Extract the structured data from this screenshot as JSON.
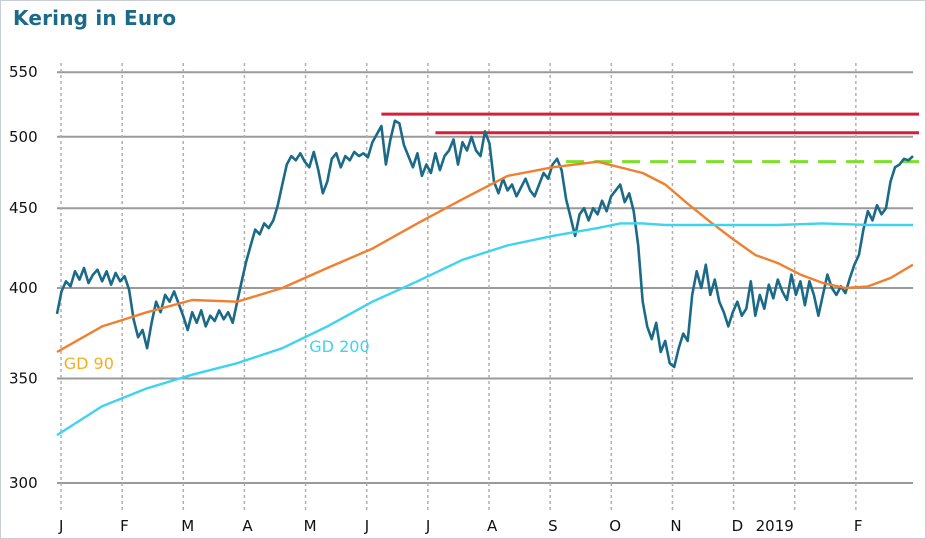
{
  "chart_data": {
    "type": "line",
    "title": "Kering in Euro",
    "xlabel": "",
    "ylabel": "",
    "y_scale": "log",
    "ylim": [
      290,
      570
    ],
    "yticks": [
      300,
      350,
      400,
      450,
      500,
      550
    ],
    "x_tick_labels": [
      "J",
      "F",
      "M",
      "A",
      "M",
      "J",
      "J",
      "A",
      "S",
      "O",
      "N",
      "D",
      "2019",
      "F"
    ],
    "grid": true,
    "series": [
      {
        "name": "",
        "role": "price",
        "color": "#1b6a88",
        "points": [
          [
            0,
            385
          ],
          [
            2,
            398
          ],
          [
            4,
            404
          ],
          [
            6,
            401
          ],
          [
            8,
            410
          ],
          [
            10,
            405
          ],
          [
            12,
            412
          ],
          [
            14,
            403
          ],
          [
            16,
            408
          ],
          [
            18,
            411
          ],
          [
            20,
            404
          ],
          [
            22,
            410
          ],
          [
            24,
            402
          ],
          [
            26,
            409
          ],
          [
            28,
            404
          ],
          [
            30,
            407
          ],
          [
            32,
            399
          ],
          [
            34,
            382
          ],
          [
            36,
            372
          ],
          [
            38,
            376
          ],
          [
            40,
            366
          ],
          [
            42,
            380
          ],
          [
            44,
            392
          ],
          [
            46,
            386
          ],
          [
            48,
            396
          ],
          [
            50,
            392
          ],
          [
            52,
            398
          ],
          [
            54,
            391
          ],
          [
            56,
            384
          ],
          [
            58,
            376
          ],
          [
            60,
            386
          ],
          [
            62,
            380
          ],
          [
            64,
            387
          ],
          [
            66,
            378
          ],
          [
            68,
            384
          ],
          [
            70,
            381
          ],
          [
            72,
            387
          ],
          [
            74,
            382
          ],
          [
            76,
            386
          ],
          [
            78,
            380
          ],
          [
            80,
            392
          ],
          [
            82,
            404
          ],
          [
            84,
            416
          ],
          [
            86,
            426
          ],
          [
            88,
            436
          ],
          [
            90,
            433
          ],
          [
            92,
            440
          ],
          [
            94,
            437
          ],
          [
            96,
            442
          ],
          [
            98,
            452
          ],
          [
            100,
            466
          ],
          [
            102,
            480
          ],
          [
            104,
            486
          ],
          [
            106,
            483
          ],
          [
            108,
            488
          ],
          [
            110,
            482
          ],
          [
            112,
            478
          ],
          [
            114,
            489
          ],
          [
            116,
            476
          ],
          [
            118,
            460
          ],
          [
            120,
            468
          ],
          [
            122,
            484
          ],
          [
            124,
            488
          ],
          [
            126,
            478
          ],
          [
            128,
            486
          ],
          [
            130,
            483
          ],
          [
            132,
            489
          ],
          [
            134,
            486
          ],
          [
            136,
            488
          ],
          [
            138,
            485
          ],
          [
            140,
            496
          ],
          [
            142,
            502
          ],
          [
            144,
            508
          ],
          [
            146,
            480
          ],
          [
            148,
            498
          ],
          [
            150,
            512
          ],
          [
            152,
            510
          ],
          [
            154,
            494
          ],
          [
            156,
            486
          ],
          [
            158,
            478
          ],
          [
            160,
            488
          ],
          [
            162,
            472
          ],
          [
            164,
            480
          ],
          [
            166,
            474
          ],
          [
            168,
            488
          ],
          [
            170,
            476
          ],
          [
            172,
            486
          ],
          [
            174,
            490
          ],
          [
            176,
            498
          ],
          [
            178,
            480
          ],
          [
            180,
            496
          ],
          [
            182,
            490
          ],
          [
            184,
            500
          ],
          [
            186,
            490
          ],
          [
            188,
            486
          ],
          [
            190,
            504
          ],
          [
            192,
            495
          ],
          [
            194,
            468
          ],
          [
            196,
            460
          ],
          [
            198,
            470
          ],
          [
            200,
            462
          ],
          [
            202,
            466
          ],
          [
            204,
            458
          ],
          [
            206,
            464
          ],
          [
            208,
            470
          ],
          [
            210,
            462
          ],
          [
            212,
            458
          ],
          [
            214,
            466
          ],
          [
            216,
            474
          ],
          [
            218,
            470
          ],
          [
            220,
            480
          ],
          [
            222,
            484
          ],
          [
            224,
            476
          ],
          [
            226,
            456
          ],
          [
            228,
            444
          ],
          [
            230,
            432
          ],
          [
            232,
            446
          ],
          [
            234,
            450
          ],
          [
            236,
            442
          ],
          [
            238,
            450
          ],
          [
            240,
            446
          ],
          [
            242,
            455
          ],
          [
            244,
            448
          ],
          [
            246,
            458
          ],
          [
            248,
            462
          ],
          [
            250,
            466
          ],
          [
            252,
            454
          ],
          [
            254,
            460
          ],
          [
            256,
            448
          ],
          [
            258,
            426
          ],
          [
            260,
            392
          ],
          [
            262,
            378
          ],
          [
            264,
            371
          ],
          [
            266,
            380
          ],
          [
            268,
            364
          ],
          [
            270,
            370
          ],
          [
            272,
            358
          ],
          [
            274,
            356
          ],
          [
            276,
            366
          ],
          [
            278,
            374
          ],
          [
            280,
            370
          ],
          [
            282,
            396
          ],
          [
            284,
            410
          ],
          [
            286,
            400
          ],
          [
            288,
            414
          ],
          [
            290,
            396
          ],
          [
            292,
            405
          ],
          [
            294,
            392
          ],
          [
            296,
            386
          ],
          [
            298,
            378
          ],
          [
            300,
            386
          ],
          [
            302,
            392
          ],
          [
            304,
            384
          ],
          [
            306,
            388
          ],
          [
            308,
            404
          ],
          [
            310,
            384
          ],
          [
            312,
            396
          ],
          [
            314,
            388
          ],
          [
            316,
            402
          ],
          [
            318,
            394
          ],
          [
            320,
            405
          ],
          [
            322,
            398
          ],
          [
            324,
            393
          ],
          [
            326,
            408
          ],
          [
            328,
            396
          ],
          [
            330,
            404
          ],
          [
            332,
            390
          ],
          [
            334,
            404
          ],
          [
            336,
            396
          ],
          [
            338,
            384
          ],
          [
            340,
            396
          ],
          [
            342,
            408
          ],
          [
            344,
            400
          ],
          [
            346,
            396
          ],
          [
            348,
            401
          ],
          [
            350,
            397
          ],
          [
            352,
            406
          ],
          [
            354,
            414
          ],
          [
            356,
            420
          ],
          [
            358,
            436
          ],
          [
            360,
            448
          ],
          [
            362,
            442
          ],
          [
            364,
            452
          ],
          [
            366,
            446
          ],
          [
            368,
            450
          ],
          [
            370,
            468
          ],
          [
            372,
            478
          ],
          [
            374,
            480
          ],
          [
            376,
            484
          ],
          [
            378,
            483
          ],
          [
            380,
            486
          ]
        ]
      },
      {
        "name": "GD 90",
        "role": "moving-average-90",
        "color": "#f08030",
        "points": [
          [
            0,
            364
          ],
          [
            20,
            378
          ],
          [
            40,
            386
          ],
          [
            60,
            393
          ],
          [
            80,
            392
          ],
          [
            100,
            400
          ],
          [
            120,
            412
          ],
          [
            140,
            424
          ],
          [
            160,
            440
          ],
          [
            180,
            456
          ],
          [
            200,
            472
          ],
          [
            220,
            478
          ],
          [
            240,
            482
          ],
          [
            260,
            474
          ],
          [
            270,
            466
          ],
          [
            280,
            453
          ],
          [
            290,
            441
          ],
          [
            300,
            430
          ],
          [
            310,
            420
          ],
          [
            320,
            415
          ],
          [
            330,
            408
          ],
          [
            340,
            403
          ],
          [
            350,
            400
          ],
          [
            360,
            401
          ],
          [
            370,
            406
          ],
          [
            380,
            414
          ]
        ]
      },
      {
        "name": "GD 200",
        "role": "moving-average-200",
        "color": "#3fd3f2",
        "points": [
          [
            0,
            322
          ],
          [
            20,
            336
          ],
          [
            40,
            345
          ],
          [
            60,
            352
          ],
          [
            80,
            358
          ],
          [
            100,
            366
          ],
          [
            120,
            378
          ],
          [
            140,
            392
          ],
          [
            160,
            404
          ],
          [
            180,
            417
          ],
          [
            200,
            426
          ],
          [
            220,
            432
          ],
          [
            240,
            437
          ],
          [
            250,
            440
          ],
          [
            260,
            440
          ],
          [
            270,
            439
          ],
          [
            280,
            439
          ],
          [
            300,
            439
          ],
          [
            320,
            439
          ],
          [
            340,
            440
          ],
          [
            360,
            439
          ],
          [
            380,
            439
          ]
        ]
      }
    ],
    "horizontal_levels": [
      {
        "value": 517,
        "x_from": 144,
        "x_to": 380,
        "style": "solid",
        "color": "#d81e38"
      },
      {
        "value": 503,
        "x_from": 168,
        "x_to": 380,
        "style": "solid",
        "color": "#d81e38"
      },
      {
        "value": 482,
        "x_from": 226,
        "x_to": 380,
        "style": "dashed",
        "color": "#7de02a"
      }
    ],
    "annotations": [
      {
        "text": "GD 90",
        "x": 3,
        "y": 355,
        "color": "#f0b020"
      },
      {
        "text": "GD 200",
        "x": 112,
        "y": 364,
        "color": "#3fd3f2"
      }
    ]
  }
}
